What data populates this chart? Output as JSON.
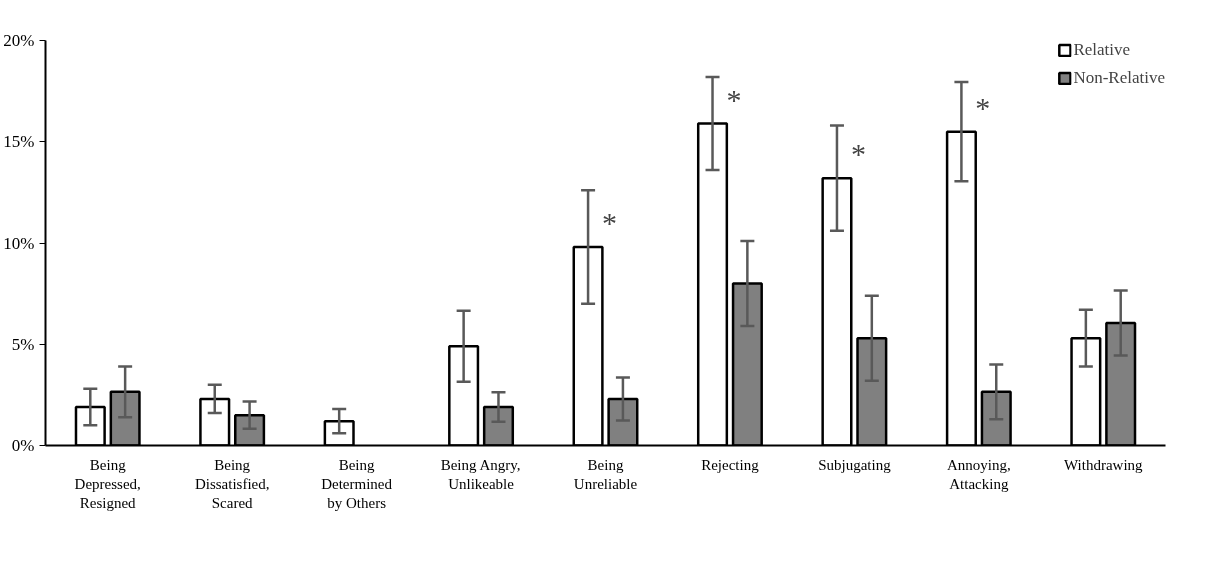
{
  "chart_data": {
    "type": "bar",
    "categories": [
      "Being\nDepressed,\nResigned",
      "Being\nDissatisfied,\nScared",
      "Being\nDetermined\nby Others",
      "Being Angry,\nUnlikeable",
      "Being\nUnreliable",
      "Rejecting",
      "Subjugating",
      "Annoying,\nAttacking",
      "Withdrawing"
    ],
    "series": [
      {
        "name": "Relative",
        "color": "#ffffff",
        "values": [
          1.9,
          2.3,
          1.2,
          4.9,
          9.8,
          15.9,
          13.2,
          15.5,
          5.3
        ],
        "errors": [
          0.9,
          0.7,
          0.6,
          1.75,
          2.8,
          2.3,
          2.6,
          2.45,
          1.4
        ]
      },
      {
        "name": "Non-Relative",
        "color": "#808080",
        "values": [
          2.65,
          1.5,
          null,
          1.9,
          2.3,
          8.0,
          5.3,
          2.65,
          6.05
        ],
        "errors": [
          1.25,
          0.67,
          null,
          0.73,
          1.06,
          2.1,
          2.1,
          1.35,
          1.6
        ]
      }
    ],
    "ylim": [
      0,
      20
    ],
    "yticks": [
      {
        "value": 0,
        "label": "0%"
      },
      {
        "value": 5,
        "label": "5%"
      },
      {
        "value": 10,
        "label": "10%"
      },
      {
        "value": 15,
        "label": "15%"
      },
      {
        "value": 20,
        "label": "20%"
      }
    ],
    "annotations": [
      {
        "text": "*",
        "x": "Being\nUnreliable",
        "y": 9.8
      },
      {
        "text": "*",
        "x": "Rejecting",
        "y": 15.9
      },
      {
        "text": "*",
        "x": "Subjugating",
        "y": 13.2
      },
      {
        "text": "*",
        "x": "Annoying,\nAttacking",
        "y": 15.5
      }
    ],
    "grid": false,
    "legend": "top right"
  }
}
